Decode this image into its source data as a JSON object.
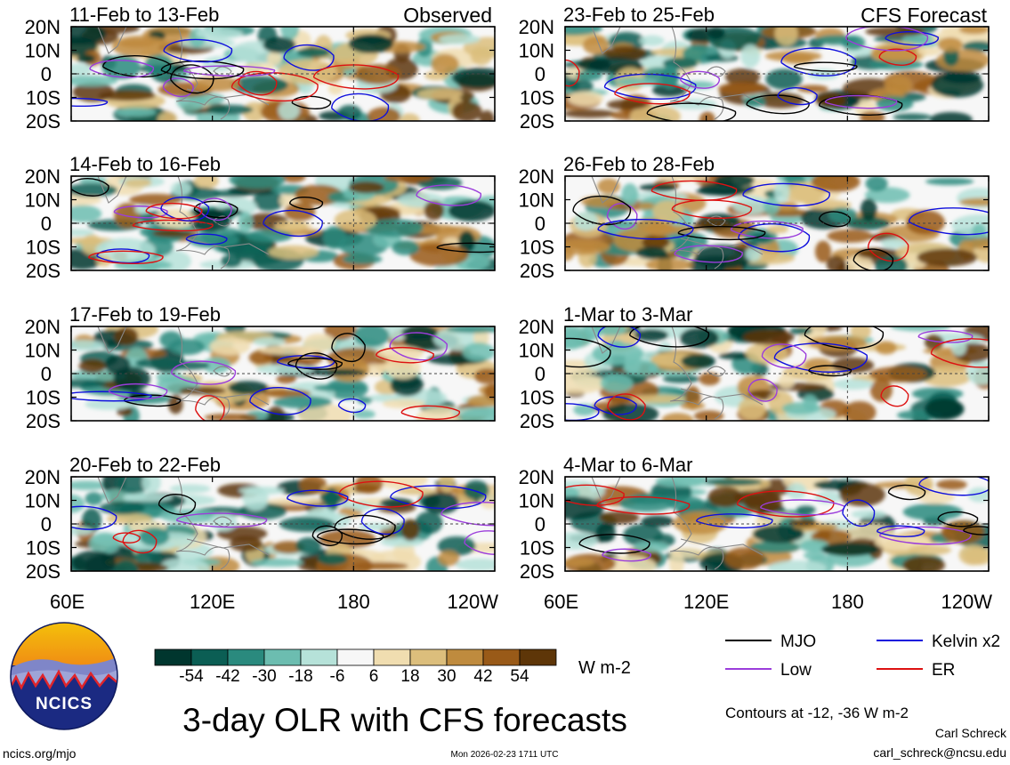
{
  "chart_data": {
    "type": "heatmap",
    "title": "3-day OLR with CFS forecasts",
    "variable": "Outgoing Longwave Radiation anomaly",
    "colorbar": {
      "unit": "W m-2",
      "tick_labels": [
        "-54",
        "-42",
        "-30",
        "-18",
        "-6",
        "6",
        "18",
        "30",
        "42",
        "54"
      ],
      "levels": [
        -60,
        -48,
        -36,
        -24,
        -12,
        0,
        12,
        24,
        36,
        48,
        60
      ],
      "colors": [
        "#00362e",
        "#0b5e54",
        "#2a8a7e",
        "#6cbdb0",
        "#b6e2d9",
        "#f7f7f7",
        "#f0ddb0",
        "#dcbe7c",
        "#bf8b3e",
        "#995a18",
        "#5e3608"
      ]
    },
    "x_axis": {
      "tick_labels": [
        "60E",
        "120E",
        "180",
        "120W"
      ],
      "range": [
        "60E",
        "120W"
      ]
    },
    "y_axis": {
      "tick_labels": [
        "20N",
        "10N",
        "0",
        "10S",
        "20S"
      ],
      "range": [
        "20S",
        "20N"
      ]
    },
    "column_headers": [
      "Observed",
      "CFS Forecast"
    ],
    "panels": [
      {
        "column": "Observed",
        "label": "11-Feb to 13-Feb"
      },
      {
        "column": "Observed",
        "label": "14-Feb to 16-Feb"
      },
      {
        "column": "Observed",
        "label": "17-Feb to 19-Feb"
      },
      {
        "column": "Observed",
        "label": "20-Feb to 22-Feb"
      },
      {
        "column": "CFS Forecast",
        "label": "23-Feb to 25-Feb"
      },
      {
        "column": "CFS Forecast",
        "label": "26-Feb to 28-Feb"
      },
      {
        "column": "CFS Forecast",
        "label": "1-Mar to 3-Mar"
      },
      {
        "column": "CFS Forecast",
        "label": "4-Mar to 6-Mar"
      }
    ],
    "contour_legend": [
      {
        "name": "MJO",
        "color": "#000000"
      },
      {
        "name": "Kelvin x2",
        "color": "#1010dd"
      },
      {
        "name": "Low",
        "color": "#9b3ddb"
      },
      {
        "name": "ER",
        "color": "#dd1111"
      }
    ],
    "contour_note": "Contours at -12, -36 W m-2"
  },
  "logo": {
    "text": "NCICS"
  },
  "footer": {
    "url": "ncics.org/mjo",
    "timestamp": "Mon 2026-02-23 1711 UTC",
    "author": "Carl Schreck",
    "email": "carl_schreck@ncsu.edu"
  }
}
